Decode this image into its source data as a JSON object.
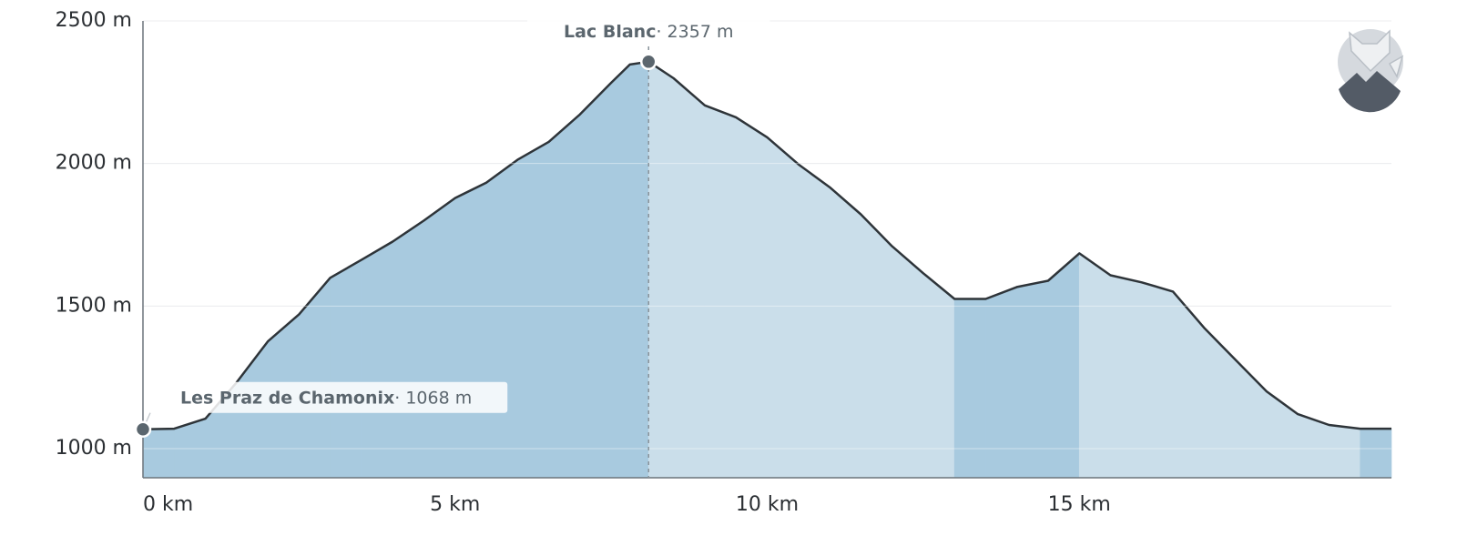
{
  "chart_data": {
    "type": "area",
    "x": [
      0,
      0.5,
      1,
      1.5,
      2,
      2.5,
      3,
      3.5,
      4,
      4.5,
      5,
      5.5,
      6,
      6.5,
      7,
      7.5,
      7.8,
      8.1,
      8.5,
      9,
      9.5,
      10,
      10.5,
      11,
      11.5,
      12,
      12.5,
      13,
      13.5,
      14,
      14.5,
      15,
      15.5,
      16,
      16.5,
      17,
      17.5,
      18,
      18.5,
      19,
      19.5,
      20
    ],
    "values": [
      1068,
      1070,
      1105,
      1232,
      1376,
      1471,
      1599,
      1662,
      1726,
      1800,
      1879,
      1933,
      2013,
      2076,
      2172,
      2283,
      2347,
      2357,
      2299,
      2204,
      2162,
      2092,
      1997,
      1917,
      1822,
      1710,
      1615,
      1525,
      1525,
      1567,
      1589,
      1685,
      1608,
      1583,
      1551,
      1424,
      1312,
      1201,
      1121,
      1083,
      1070,
      1070
    ],
    "colors": {
      "ascent": "#a8cadf",
      "descent": "#cadeea",
      "line": "#2e3439",
      "marker": "#5b666e"
    },
    "xlim": [
      0,
      20
    ],
    "ylim": [
      898,
      2500
    ],
    "xticks": [
      {
        "value": 0,
        "label": "0 km"
      },
      {
        "value": 5,
        "label": "5 km"
      },
      {
        "value": 10,
        "label": "10 km"
      },
      {
        "value": 15,
        "label": "15 km"
      }
    ],
    "yticks": [
      {
        "value": 1000,
        "label": "1000 m"
      },
      {
        "value": 1500,
        "label": "1500 m"
      },
      {
        "value": 2000,
        "label": "2000 m"
      },
      {
        "value": 2500,
        "label": "2500 m"
      }
    ],
    "grid": true,
    "annotations": [
      {
        "x": 0,
        "value": 1068,
        "label": "Les Praz de Chamonix",
        "value_label": "· 1068 m"
      },
      {
        "x": 8.1,
        "value": 2357,
        "label": "Lac Blanc",
        "value_label": "· 2357 m"
      }
    ]
  }
}
